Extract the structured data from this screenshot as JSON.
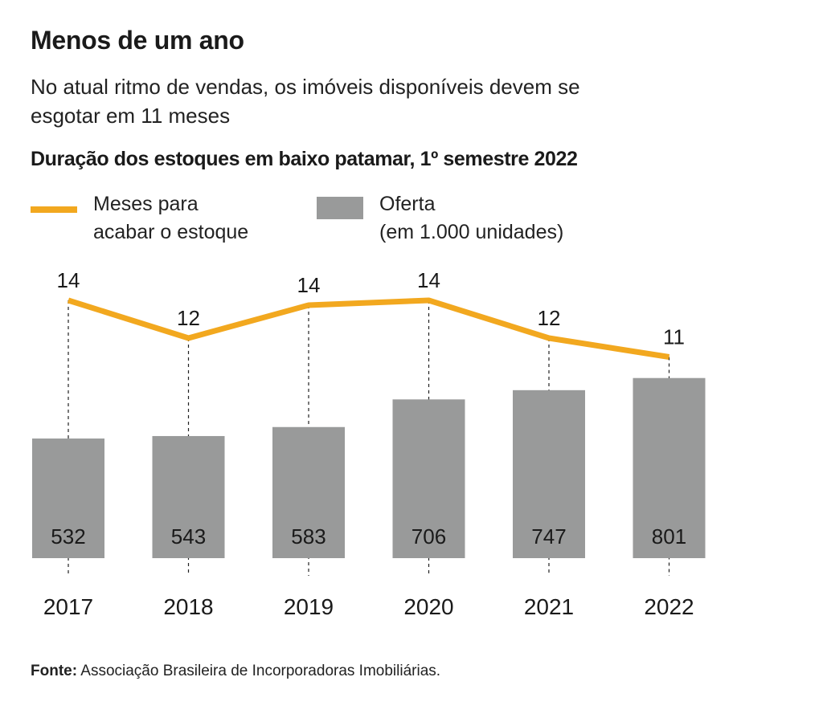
{
  "header": {
    "title": "Menos de um ano",
    "subtitle": "No atual ritmo de vendas, os imóveis disponíveis devem se esgotar em 11 meses"
  },
  "chart_heading": "Duração dos estoques em baixo patamar, 1º semestre 2022",
  "legend": {
    "line_label": "Meses para\nacabar o estoque",
    "bar_label": "Oferta\n(em 1.000 unidades)"
  },
  "colors": {
    "line": "#f2a81f",
    "bar": "#999a9a"
  },
  "chart_data": {
    "type": "bar+line",
    "title": "Duração dos estoques em baixo patamar, 1º semestre 2022",
    "categories": [
      "2017",
      "2018",
      "2019",
      "2020",
      "2021",
      "2022"
    ],
    "series": [
      {
        "name": "Oferta (em 1.000 unidades)",
        "type": "bar",
        "values": [
          532,
          543,
          583,
          706,
          747,
          801
        ]
      },
      {
        "name": "Meses para acabar o estoque",
        "type": "line",
        "values": [
          14,
          12,
          14,
          14,
          12,
          11
        ]
      }
    ],
    "grid": false,
    "legend_position": "top-left"
  },
  "source": {
    "label": "Fonte:",
    "text": "Associação Brasileira de Incorporadoras Imobiliárias."
  }
}
